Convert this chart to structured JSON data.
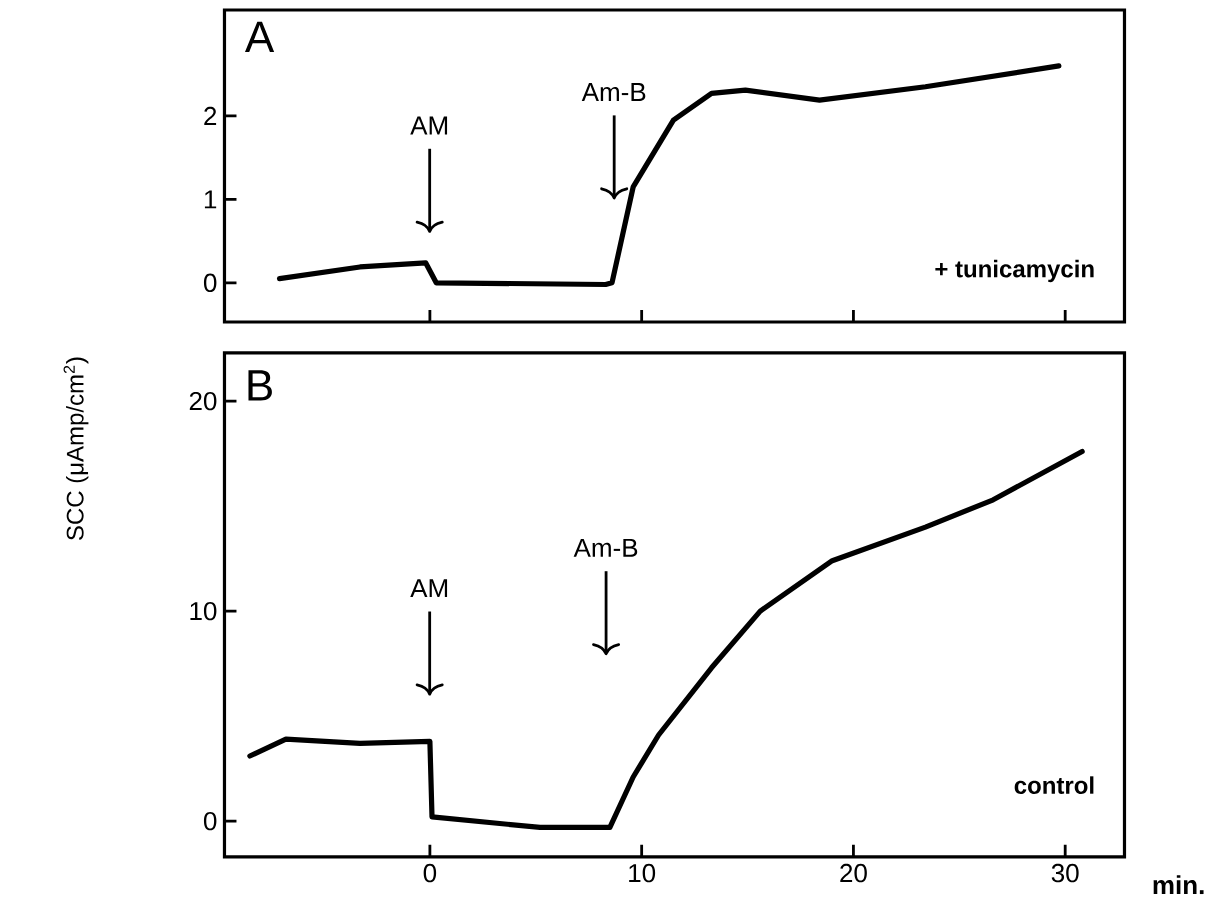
{
  "chart_data": [
    {
      "type": "line",
      "color": "#000000",
      "x": [
        -7.1,
        -3.3,
        -0.2,
        0.3,
        8.3,
        8.6,
        9.6,
        11.5,
        13.3,
        14.9,
        18.4,
        23.4,
        29.7
      ],
      "values": [
        0.05,
        0.19,
        0.24,
        0.0,
        -0.02,
        0.0,
        1.15,
        1.95,
        2.27,
        2.31,
        2.19,
        2.35,
        2.6
      ],
      "xlim": [
        -9.7,
        32.8
      ],
      "ylim": [
        -0.47,
        3.27
      ],
      "xticks": [
        0,
        10,
        20,
        30
      ],
      "yticks": [
        0,
        1,
        2
      ],
      "tick_labels": "y",
      "annotations": [
        "A",
        "+ tunicamycin",
        "AM",
        "Am-B"
      ]
    },
    {
      "type": "line",
      "color": "#000000",
      "x": [
        -8.5,
        -6.8,
        -3.3,
        0,
        0.1,
        5.2,
        8.5,
        9.6,
        10.8,
        13.3,
        15.6,
        19.0,
        23.4,
        26.6,
        30.8
      ],
      "values": [
        3.1,
        3.9,
        3.7,
        3.8,
        0.2,
        -0.3,
        -0.3,
        2.1,
        4.1,
        7.3,
        10,
        12.4,
        14.0,
        15.3,
        17.6
      ],
      "xlim": [
        -9.7,
        32.8
      ],
      "ylim": [
        -1.7,
        22.3
      ],
      "xticks": [
        0,
        10,
        20,
        30
      ],
      "yticks": [
        0,
        10,
        20
      ],
      "xlabel": "min.",
      "ylabel": "SCC (μAmp/cm$^{2}$)",
      "annotations": [
        "B",
        "control",
        "AM",
        "Am-B"
      ]
    }
  ]
}
